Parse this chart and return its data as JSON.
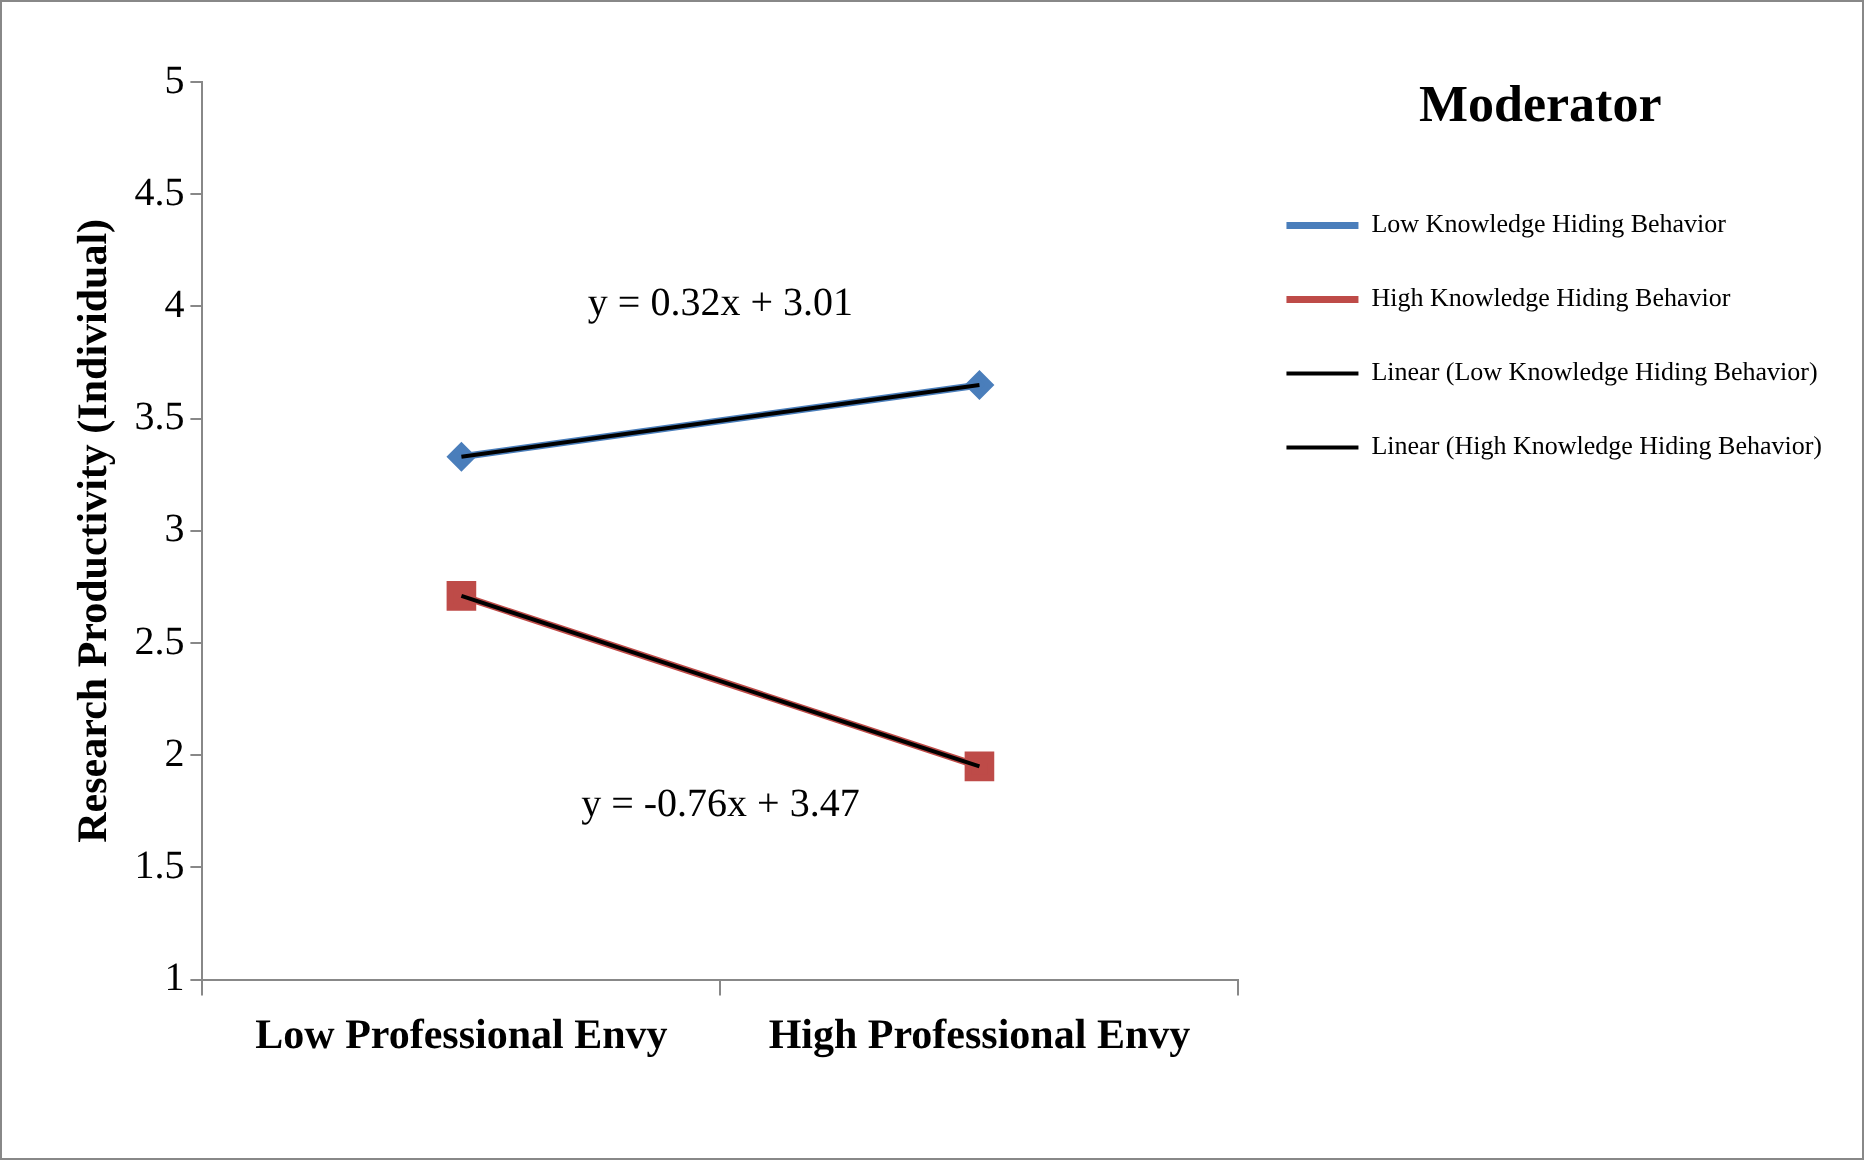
{
  "chart_data": {
    "type": "line",
    "ylabel": "Research Productivity (Individual)",
    "legend_title": "Moderator",
    "legend": "right",
    "grid": false,
    "categories": [
      "Low Professional Envy",
      "High Professional Envy"
    ],
    "ylim": [
      1,
      5
    ],
    "yticks": [
      1,
      1.5,
      2,
      2.5,
      3,
      3.5,
      4,
      4.5,
      5
    ],
    "series": [
      {
        "name": "Low Knowledge Hiding Behavior",
        "color": "#4a7ebb",
        "values": [
          3.33,
          3.65
        ],
        "marker": "diamond"
      },
      {
        "name": "High Knowledge Hiding Behavior",
        "color": "#be4b48",
        "values": [
          2.71,
          1.95
        ],
        "marker": "square"
      },
      {
        "name": "Linear (Low Knowledge Hiding Behavior)",
        "color": "#000000",
        "values": [
          3.33,
          3.65
        ],
        "marker": "none"
      },
      {
        "name": "Linear (High Knowledge Hiding Behavior)",
        "color": "#000000",
        "values": [
          2.71,
          1.95
        ],
        "marker": "none"
      }
    ],
    "annotations": [
      "y = 0.32x + 3.01",
      "y = -0.76x + 3.47"
    ]
  }
}
